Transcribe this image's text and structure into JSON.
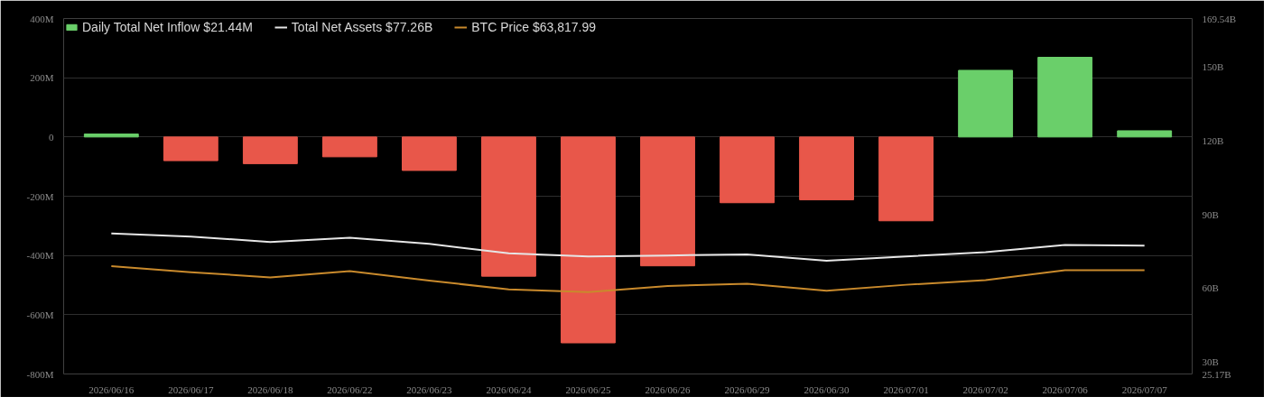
{
  "chart_data": {
    "type": "bar",
    "categories": [
      "2026/06/16",
      "2026/06/17",
      "2026/06/18",
      "2026/06/22",
      "2026/06/23",
      "2026/06/24",
      "2026/06/25",
      "2026/06/26",
      "2026/06/29",
      "2026/06/30",
      "2026/07/01",
      "2026/07/02",
      "2026/07/06",
      "2026/07/07"
    ],
    "series": [
      {
        "name": "Daily Total Net Inflow $21.44M",
        "colors": [
          "#6acf6a",
          "#e8574a",
          "#e8574a",
          "#e8574a",
          "#e8574a",
          "#e8574a",
          "#e8574a",
          "#e8574a",
          "#e8574a",
          "#e8574a",
          "#e8574a",
          "#6acf6a",
          "#6acf6a",
          "#6acf6a"
        ],
        "values": [
          10,
          -80,
          -90,
          -67,
          -113,
          -470,
          -695,
          -435,
          -222,
          -212,
          -283,
          225,
          269,
          21
        ]
      },
      {
        "name": "Total Net Assets $77.26B",
        "type": "line",
        "axis": "y2",
        "color": "#e6e6e6",
        "values": [
          82.2,
          81,
          78.8,
          80.5,
          78,
          74.2,
          72.9,
          73.3,
          73.7,
          71.2,
          72.9,
          74.6,
          77.6,
          77.3
        ]
      },
      {
        "name": "BTC Price $63,817.99",
        "type": "line",
        "axis": "y2",
        "color": "#c98a2c",
        "values": [
          69,
          66.5,
          64.4,
          66.9,
          63.1,
          59.5,
          58.4,
          60.9,
          61.8,
          59,
          61.4,
          63.3,
          67.3,
          67.3
        ]
      }
    ],
    "ylim": [
      -800,
      400
    ],
    "yticks": [
      {
        "value": -800,
        "label": "-800M"
      },
      {
        "value": -600,
        "label": "-600M"
      },
      {
        "value": -400,
        "label": "-400M"
      },
      {
        "value": -200,
        "label": "-200M"
      },
      0,
      {
        "value": 200,
        "label": "200M"
      },
      {
        "value": 400,
        "label": "400M"
      }
    ],
    "y2lim": [
      25.17,
      169.54
    ],
    "y2ticks": [
      {
        "value": 25.17,
        "label": "25.17B"
      },
      {
        "value": 30,
        "label": "30B"
      },
      {
        "value": 60,
        "label": "60B"
      },
      {
        "value": 90,
        "label": "90B"
      },
      {
        "value": 120,
        "label": "120B"
      },
      {
        "value": 150,
        "label": "150B"
      },
      {
        "value": 169.54,
        "label": "169.54B"
      }
    ],
    "grid": "y",
    "legend": "top left",
    "marker": "none",
    "line_style": "solid"
  }
}
